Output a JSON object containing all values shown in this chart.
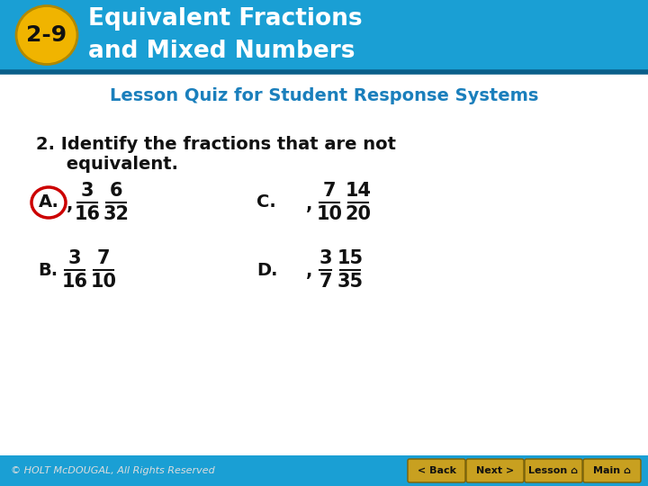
{
  "header_bg_color": "#1a9fd4",
  "header_text_color": "#ffffff",
  "header_title_line1": "Equivalent Fractions",
  "header_title_line2": "and Mixed Numbers",
  "badge_bg": "#f0b400",
  "badge_text": "2-9",
  "subtitle_color": "#1a7fbc",
  "subtitle_text": "Lesson Quiz for Student Response Systems",
  "question_text_line1": "2. Identify the fractions that are not",
  "question_text_line2": "     equivalent.",
  "body_bg": "#ffffff",
  "answer_A_circle_color": "#cc0000",
  "footer_bg_color": "#1a9fd4",
  "footer_text": "© HOLT McDOUGAL, All Rights Reserved",
  "footer_button_color": "#c8a020",
  "footer_buttons": [
    "< Back",
    "Next >",
    "Lesson ⌂",
    "Main ⌂"
  ]
}
